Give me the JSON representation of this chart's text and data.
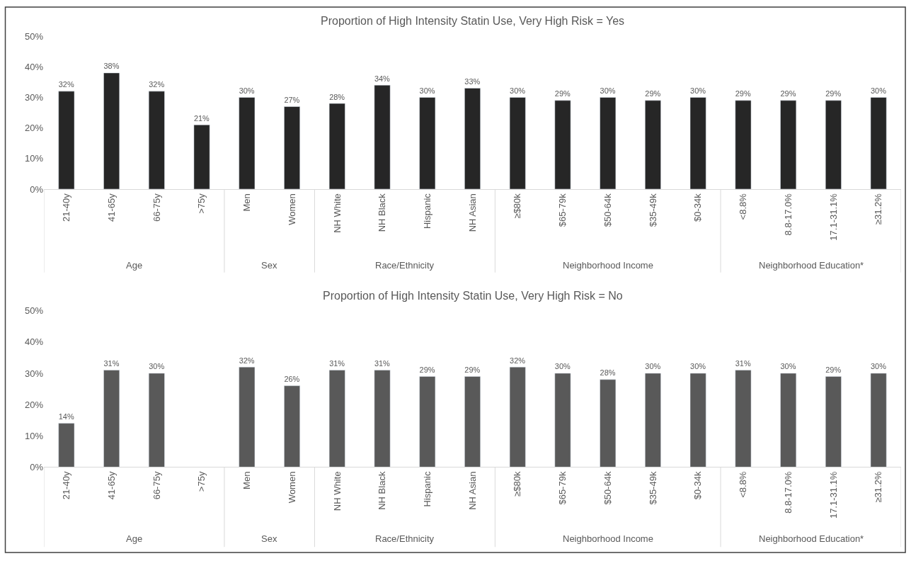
{
  "chart_data": [
    {
      "type": "bar",
      "title": "Proportion of High Intensity Statin Use, Very High Risk = Yes",
      "categories": [
        "21-40y",
        "41-65y",
        "66-75y",
        ">75y",
        "Men",
        "Women",
        "NH White",
        "NH Black",
        "Hispanic",
        "NH Asian",
        "≥$80k",
        "$65-79k",
        "$50-64k",
        "$35-49k",
        "$0-34k",
        "<8.8%",
        "8.8-17.0%",
        "17.1-31.1%",
        "≥31.2%"
      ],
      "values": [
        32,
        38,
        32,
        21,
        30,
        27,
        28,
        34,
        30,
        33,
        30,
        29,
        30,
        29,
        30,
        29,
        29,
        29,
        30
      ],
      "value_labels": [
        "32%",
        "38%",
        "32%",
        "21%",
        "30%",
        "27%",
        "28%",
        "34%",
        "30%",
        "33%",
        "30%",
        "29%",
        "30%",
        "29%",
        "30%",
        "29%",
        "29%",
        "29%",
        "30%"
      ],
      "color": "#262626",
      "ylim": [
        0,
        50
      ],
      "yticks": [
        {
          "value": 0,
          "label": "0%"
        },
        {
          "value": 10,
          "label": "10%"
        },
        {
          "value": 20,
          "label": "20%"
        },
        {
          "value": 30,
          "label": "30%"
        },
        {
          "value": 40,
          "label": "40%"
        },
        {
          "value": 50,
          "label": "50%"
        }
      ],
      "annotations": [
        "Age",
        "Sex",
        "Race/Ethnicity",
        "Neighborhood Income",
        "Neighborhood Education*"
      ]
    },
    {
      "type": "bar",
      "title": "Proportion of High Intensity Statin Use, Very High Risk = No",
      "categories": [
        "21-40y",
        "41-65y",
        "66-75y",
        ">75y",
        "Men",
        "Women",
        "NH White",
        "NH Black",
        "Hispanic",
        "NH Asian",
        "≥$80k",
        "$65-79k",
        "$50-64k",
        "$35-49k",
        "$0-34k",
        "<8.8%",
        "8.8-17.0%",
        "17.1-31.1%",
        "≥31.2%"
      ],
      "values": [
        14,
        31,
        30,
        null,
        32,
        26,
        31,
        31,
        29,
        29,
        32,
        30,
        28,
        30,
        30,
        31,
        30,
        29,
        30
      ],
      "value_labels": [
        "14%",
        "31%",
        "30%",
        null,
        "32%",
        "26%",
        "31%",
        "31%",
        "29%",
        "29%",
        "32%",
        "30%",
        "28%",
        "30%",
        "30%",
        "31%",
        "30%",
        "29%",
        "30%"
      ],
      "color": "#595959",
      "ylim": [
        0,
        50
      ],
      "yticks": [
        {
          "value": 0,
          "label": "0%"
        },
        {
          "value": 10,
          "label": "10%"
        },
        {
          "value": 20,
          "label": "20%"
        },
        {
          "value": 30,
          "label": "30%"
        },
        {
          "value": 40,
          "label": "40%"
        },
        {
          "value": 50,
          "label": "50%"
        }
      ],
      "annotations": [
        "Age",
        "Sex",
        "Race/Ethnicity",
        "Neighborhood Income",
        "Neighborhood Education*"
      ]
    }
  ]
}
